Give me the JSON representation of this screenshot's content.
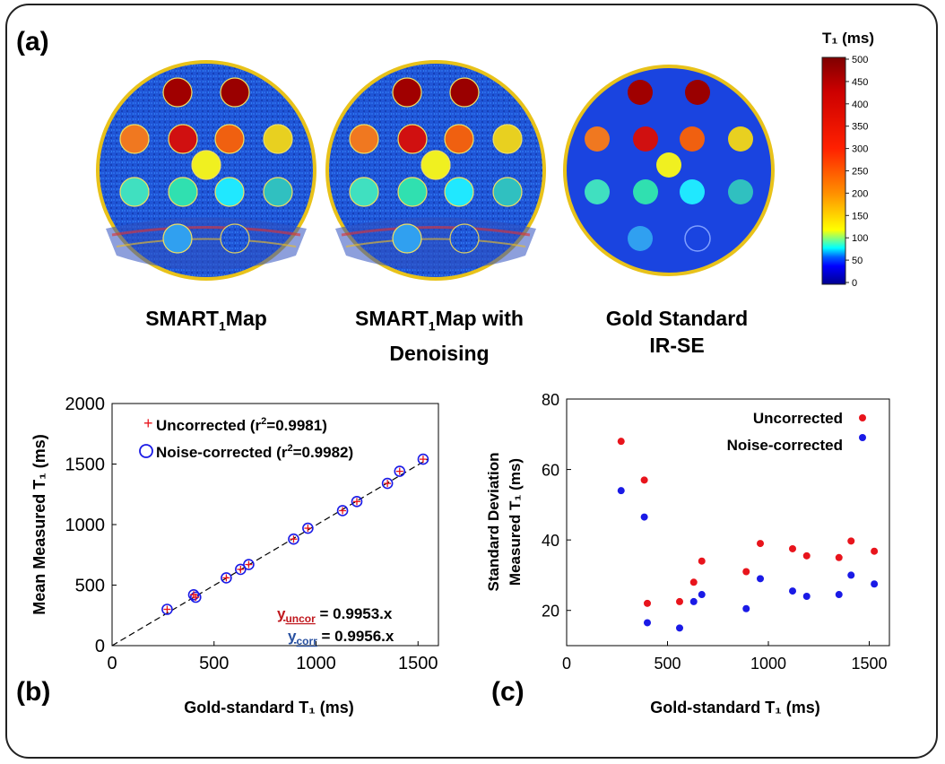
{
  "panels": {
    "a": "(a)",
    "b": "(b)",
    "c": "(c)"
  },
  "maps": [
    {
      "name": "SMART",
      "sub": "1",
      "rest": "Map",
      "line2": ""
    },
    {
      "name": "SMART",
      "sub": "1",
      "rest": "Map with",
      "line2": "Denoising"
    },
    {
      "name": "Gold Standard",
      "sub": "",
      "rest": "",
      "line2": "IR-SE"
    }
  ],
  "colorbar": {
    "title": "T₁ (ms)",
    "ticks": [
      "500",
      "450",
      "400",
      "350",
      "300",
      "250",
      "200",
      "150",
      "100",
      "50",
      "0"
    ]
  },
  "colors": {
    "uncorrected": "#e8141c",
    "corrected": "#1a1ae6",
    "bg_map": "#1a50d8"
  },
  "chart_data": [
    {
      "type": "scatter",
      "id": "b",
      "xlabel": "Gold-standard T₁ (ms)",
      "ylabel": "Mean Measured T₁ (ms)",
      "xlim": [
        0,
        1600
      ],
      "ylim": [
        0,
        2000
      ],
      "xticks": [
        0,
        500,
        1000,
        1500
      ],
      "yticks": [
        0,
        500,
        1000,
        1500,
        2000
      ],
      "legend": [
        "+ Uncorrected (r²=0.9981)",
        "Noise-corrected (r²=0.9982)"
      ],
      "annotations": [
        "y",
        "uncor",
        " = 0.9953.x",
        "y",
        "corr",
        " = 0.9956.x"
      ],
      "series": [
        {
          "name": "Uncorrected",
          "marker": "plus",
          "x": [
            270,
            400,
            410,
            560,
            630,
            670,
            890,
            960,
            1130,
            1200,
            1350,
            1410,
            1525
          ],
          "y": [
            300,
            420,
            400,
            560,
            630,
            670,
            880,
            970,
            1115,
            1190,
            1340,
            1440,
            1540
          ]
        },
        {
          "name": "Noise-corrected",
          "marker": "circle",
          "x": [
            270,
            400,
            410,
            560,
            630,
            670,
            890,
            960,
            1130,
            1200,
            1350,
            1410,
            1525
          ],
          "y": [
            300,
            420,
            400,
            560,
            630,
            670,
            880,
            970,
            1115,
            1190,
            1340,
            1440,
            1540
          ]
        }
      ],
      "fit_line": {
        "slope": 0.9955,
        "x": [
          0,
          1550
        ]
      }
    },
    {
      "type": "scatter",
      "id": "c",
      "xlabel": "Gold-standard T₁ (ms)",
      "ylabel_line1": "Standard Deviation",
      "ylabel_line2": "Measured T₁ (ms)",
      "xlim": [
        0,
        1600
      ],
      "ylim": [
        10,
        80
      ],
      "xticks": [
        0,
        500,
        1000,
        1500
      ],
      "yticks": [
        20,
        40,
        60,
        80
      ],
      "legend": [
        "Uncorrected",
        "Noise-corrected"
      ],
      "series": [
        {
          "name": "Uncorrected",
          "x": [
            270,
            385,
            400,
            560,
            630,
            670,
            890,
            960,
            1120,
            1190,
            1350,
            1410,
            1525
          ],
          "y": [
            68,
            57,
            22,
            22.5,
            28,
            34,
            31,
            39,
            37.5,
            35.5,
            35,
            39.7,
            36.8
          ]
        },
        {
          "name": "Noise-corrected",
          "x": [
            270,
            385,
            400,
            560,
            630,
            670,
            890,
            960,
            1120,
            1190,
            1350,
            1410,
            1525
          ],
          "y": [
            54,
            46.5,
            16.5,
            15,
            22.5,
            24.5,
            20.5,
            29,
            25.5,
            24,
            24.5,
            30,
            27.5
          ]
        }
      ]
    }
  ]
}
